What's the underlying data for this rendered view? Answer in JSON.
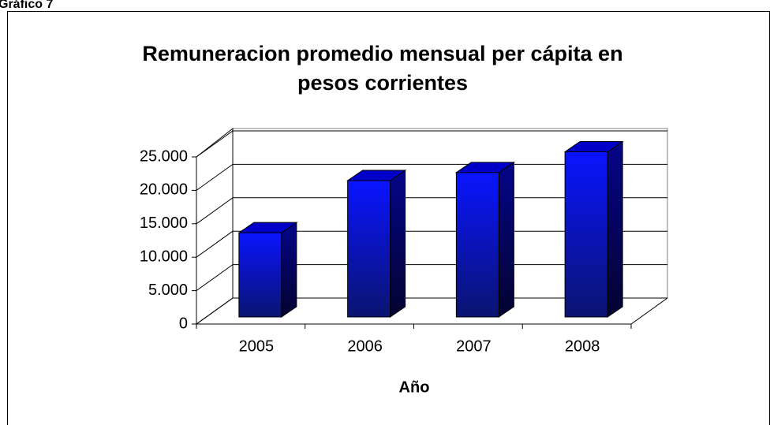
{
  "header": "Gráfico 7",
  "chart_data": {
    "type": "bar3d",
    "title": [
      "Remuneracion promedio mensual per cápita en",
      "pesos corrientes"
    ],
    "x_label": "Año",
    "categories": [
      "2005",
      "2006",
      "2007",
      "2008"
    ],
    "values": [
      12600,
      20400,
      21600,
      24700
    ],
    "color": "#0000ff",
    "ylim": [
      0,
      25000
    ],
    "yticks": [
      0,
      {
        "value": 5000,
        "label": "5.000"
      },
      {
        "value": 10000,
        "label": "10.000"
      },
      {
        "value": 15000,
        "label": "15.000"
      },
      {
        "value": 20000,
        "label": "20.000"
      },
      {
        "value": 25000,
        "label": "25.000"
      }
    ],
    "grid": true
  }
}
